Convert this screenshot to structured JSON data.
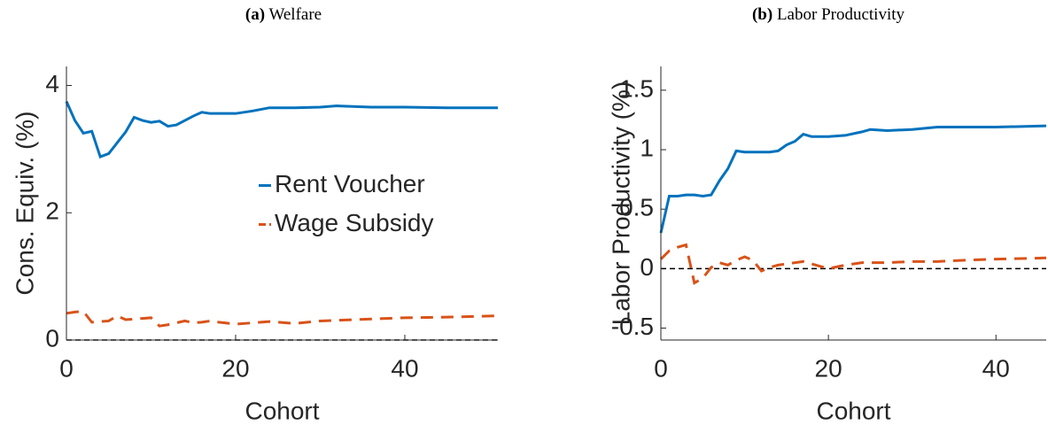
{
  "chart_data": [
    {
      "type": "line",
      "panel": "(a)",
      "title": "Welfare",
      "xlabel": "Cohort",
      "ylabel": "Cons. Equiv. (%)",
      "x": [
        0,
        1,
        2,
        3,
        4,
        5,
        6,
        7,
        8,
        9,
        10,
        11,
        12,
        13,
        14,
        15,
        16,
        17,
        18,
        20,
        22,
        24,
        27,
        30,
        32,
        36,
        40,
        45,
        51
      ],
      "series": [
        {
          "name": "Rent Voucher",
          "color": "#0072bd",
          "dash": false,
          "values": [
            3.75,
            3.45,
            3.25,
            3.28,
            2.88,
            2.93,
            3.1,
            3.27,
            3.5,
            3.45,
            3.42,
            3.44,
            3.36,
            3.38,
            3.45,
            3.52,
            3.58,
            3.56,
            3.56,
            3.56,
            3.6,
            3.65,
            3.65,
            3.66,
            3.68,
            3.66,
            3.66,
            3.65,
            3.65
          ]
        },
        {
          "name": "Wage Subsidy",
          "color": "#d95319",
          "dash": true,
          "values": [
            0.42,
            0.44,
            0.45,
            0.28,
            0.29,
            0.3,
            0.38,
            0.32,
            0.33,
            0.34,
            0.35,
            0.22,
            0.24,
            0.27,
            0.3,
            0.27,
            0.28,
            0.3,
            0.28,
            0.25,
            0.27,
            0.29,
            0.26,
            0.3,
            0.31,
            0.33,
            0.35,
            0.36,
            0.38
          ]
        }
      ],
      "hline": 0,
      "xlim": [
        0,
        51
      ],
      "ylim": [
        0,
        4.3
      ],
      "xticks": [
        0,
        20,
        40
      ],
      "yticks": [
        0,
        2,
        4
      ],
      "legend": "center right"
    },
    {
      "type": "line",
      "panel": "(b)",
      "title": "Labor Productivity",
      "xlabel": "Cohort",
      "ylabel": "Labor Productivity (%)",
      "x": [
        0,
        1,
        2,
        3,
        4,
        5,
        6,
        7,
        8,
        9,
        10,
        11,
        12,
        13,
        14,
        15,
        16,
        17,
        18,
        20,
        22,
        24,
        25,
        27,
        30,
        33,
        36,
        40,
        46
      ],
      "series": [
        {
          "color": "#0072bd",
          "dash": false,
          "values": [
            0.3,
            0.61,
            0.61,
            0.62,
            0.62,
            0.61,
            0.62,
            0.74,
            0.84,
            0.99,
            0.98,
            0.98,
            0.98,
            0.98,
            0.99,
            1.04,
            1.07,
            1.13,
            1.11,
            1.11,
            1.12,
            1.15,
            1.17,
            1.16,
            1.17,
            1.19,
            1.19,
            1.19,
            1.2
          ]
        },
        {
          "color": "#d95319",
          "dash": true,
          "values": [
            0.08,
            0.15,
            0.18,
            0.2,
            -0.12,
            -0.08,
            0.01,
            0.05,
            0.03,
            0.07,
            0.1,
            0.07,
            -0.02,
            0.01,
            0.03,
            0.04,
            0.05,
            0.06,
            0.04,
            0.0,
            0.03,
            0.05,
            0.05,
            0.05,
            0.06,
            0.06,
            0.07,
            0.08,
            0.09
          ]
        }
      ],
      "hline": 0,
      "xlim": [
        0,
        46
      ],
      "ylim": [
        -0.6,
        1.7
      ],
      "xticks": [
        0,
        20,
        40
      ],
      "yticks": [
        -0.5,
        0,
        0.5,
        1,
        1.5
      ]
    }
  ]
}
